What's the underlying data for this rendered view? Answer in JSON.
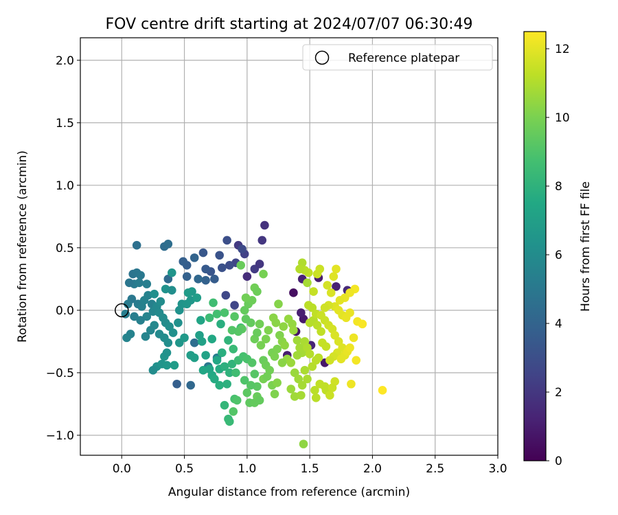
{
  "chart_data": {
    "type": "scatter",
    "title": "FOV centre drift starting at 2024/07/07 06:30:49",
    "xlabel": "Angular distance from reference (arcmin)",
    "ylabel": "Rotation from reference (arcmin)",
    "xlim": [
      -0.33,
      3.0
    ],
    "ylim": [
      -1.16,
      2.18
    ],
    "xticks": [
      "0.0",
      "0.5",
      "1.0",
      "1.5",
      "2.0",
      "2.5",
      "3.0"
    ],
    "xtick_values": [
      0.0,
      0.5,
      1.0,
      1.5,
      2.0,
      2.5,
      3.0
    ],
    "yticks": [
      "−1.0",
      "−0.5",
      "0.0",
      "0.5",
      "1.0",
      "1.5",
      "2.0"
    ],
    "ytick_values": [
      -1.0,
      -0.5,
      0.0,
      0.5,
      1.0,
      1.5,
      2.0
    ],
    "grid": true,
    "legend": {
      "label": "Reference platepar",
      "position": "top-right"
    },
    "reference_point": {
      "x": 0.0,
      "y": 0.0
    },
    "colorbar": {
      "label": "Hours from first FF file",
      "colormap": "viridis",
      "range": [
        0,
        12.5
      ],
      "ticks": [
        "0",
        "2",
        "4",
        "6",
        "8",
        "10",
        "12"
      ],
      "tick_values": [
        0,
        2,
        4,
        6,
        8,
        10,
        12
      ]
    },
    "colors": {
      "grid": "#b0b0b0",
      "reference_marker": "#000000"
    },
    "points": [
      [
        1.37,
        0.14,
        0.5
      ],
      [
        1.39,
        -0.17,
        0.7
      ],
      [
        1.45,
        -0.07,
        0.9
      ],
      [
        1.32,
        -0.36,
        1.0
      ],
      [
        1.62,
        -0.42,
        0.8
      ],
      [
        1.57,
        0.26,
        1.0
      ],
      [
        1.44,
        0.25,
        1.2
      ],
      [
        1.43,
        -0.02,
        1.1
      ],
      [
        1.51,
        -0.28,
        1.3
      ],
      [
        1.71,
        0.19,
        1.2
      ],
      [
        1.8,
        0.16,
        1.5
      ],
      [
        1.0,
        0.27,
        1.6
      ],
      [
        1.14,
        0.68,
        1.8
      ],
      [
        1.12,
        0.56,
        2.0
      ],
      [
        0.93,
        0.52,
        2.1
      ],
      [
        1.06,
        0.33,
        2.2
      ],
      [
        0.98,
        0.45,
        2.4
      ],
      [
        1.1,
        0.37,
        2.0
      ],
      [
        0.91,
        0.38,
        2.6
      ],
      [
        0.96,
        0.49,
        2.8
      ],
      [
        0.84,
        0.56,
        3.0
      ],
      [
        0.78,
        0.44,
        3.2
      ],
      [
        0.86,
        0.36,
        2.9
      ],
      [
        0.71,
        0.31,
        3.3
      ],
      [
        0.67,
        0.33,
        3.5
      ],
      [
        0.74,
        0.25,
        3.6
      ],
      [
        0.9,
        0.04,
        2.6
      ],
      [
        0.83,
        0.12,
        2.7
      ],
      [
        0.8,
        0.34,
        3.1
      ],
      [
        0.65,
        0.46,
        3.4
      ],
      [
        0.52,
        0.36,
        3.7
      ],
      [
        0.49,
        0.39,
        3.8
      ],
      [
        0.58,
        0.42,
        4.0
      ],
      [
        0.52,
        0.27,
        3.9
      ],
      [
        0.67,
        0.24,
        3.9
      ],
      [
        0.61,
        0.25,
        4.2
      ],
      [
        0.34,
        0.51,
        4.4
      ],
      [
        0.37,
        0.53,
        4.5
      ],
      [
        0.12,
        0.52,
        4.6
      ],
      [
        0.37,
        0.25,
        4.3
      ],
      [
        0.44,
        -0.59,
        3.8
      ],
      [
        0.55,
        -0.6,
        4.2
      ],
      [
        0.58,
        -0.26,
        4.5
      ],
      [
        0.69,
        -0.45,
        5.0
      ],
      [
        0.76,
        -0.38,
        5.3
      ],
      [
        0.09,
        0.29,
        4.8
      ],
      [
        0.12,
        0.3,
        4.9
      ],
      [
        0.15,
        0.28,
        5.0
      ],
      [
        0.1,
        0.21,
        5.1
      ],
      [
        0.14,
        0.22,
        5.2
      ],
      [
        0.2,
        0.21,
        5.3
      ],
      [
        0.06,
        0.22,
        4.9
      ],
      [
        0.08,
        0.09,
        5.0
      ],
      [
        0.13,
        0.05,
        5.2
      ],
      [
        0.16,
        0.03,
        5.4
      ],
      [
        0.18,
        0.08,
        5.5
      ],
      [
        0.21,
        0.12,
        5.5
      ],
      [
        0.24,
        0.05,
        5.4
      ],
      [
        0.2,
        -0.05,
        5.6
      ],
      [
        0.25,
        -0.01,
        5.7
      ],
      [
        0.28,
        0.03,
        5.8
      ],
      [
        0.3,
        -0.02,
        5.9
      ],
      [
        0.33,
        -0.06,
        6.0
      ],
      [
        0.35,
        -0.1,
        6.0
      ],
      [
        0.38,
        -0.13,
        6.1
      ],
      [
        0.26,
        -0.12,
        5.8
      ],
      [
        0.23,
        -0.16,
        5.7
      ],
      [
        0.19,
        -0.21,
        5.6
      ],
      [
        0.07,
        -0.19,
        5.5
      ],
      [
        0.04,
        -0.22,
        5.6
      ],
      [
        0.1,
        -0.05,
        5.3
      ],
      [
        0.15,
        -0.08,
        5.4
      ],
      [
        0.05,
        0.05,
        5.2
      ],
      [
        0.03,
        -0.03,
        5.3
      ],
      [
        0.3,
        -0.19,
        5.9
      ],
      [
        0.34,
        -0.22,
        6.0
      ],
      [
        0.37,
        -0.26,
        6.1
      ],
      [
        0.41,
        -0.18,
        6.2
      ],
      [
        0.45,
        -0.1,
        6.2
      ],
      [
        0.46,
        0.0,
        6.3
      ],
      [
        0.48,
        0.05,
        6.4
      ],
      [
        0.52,
        0.05,
        6.5
      ],
      [
        0.55,
        0.08,
        6.6
      ],
      [
        0.56,
        0.15,
        6.7
      ],
      [
        0.53,
        0.14,
        6.8
      ],
      [
        0.6,
        0.1,
        6.9
      ],
      [
        0.35,
        0.17,
        6.3
      ],
      [
        0.4,
        0.16,
        6.1
      ],
      [
        0.4,
        0.3,
        6.4
      ],
      [
        0.26,
        0.13,
        6.2
      ],
      [
        0.31,
        0.07,
        6.0
      ],
      [
        0.34,
        -0.37,
        6.4
      ],
      [
        0.36,
        -0.34,
        6.3
      ],
      [
        0.28,
        -0.45,
        6.2
      ],
      [
        0.25,
        -0.48,
        6.0
      ],
      [
        0.32,
        -0.43,
        6.4
      ],
      [
        0.36,
        -0.44,
        6.6
      ],
      [
        0.42,
        -0.44,
        6.8
      ],
      [
        0.46,
        -0.26,
        6.5
      ],
      [
        0.5,
        -0.22,
        6.7
      ],
      [
        0.55,
        -0.36,
        6.9
      ],
      [
        0.58,
        -0.38,
        7.0
      ],
      [
        0.62,
        -0.2,
        7.0
      ],
      [
        0.64,
        -0.25,
        7.1
      ],
      [
        0.67,
        -0.36,
        7.2
      ],
      [
        0.7,
        -0.47,
        7.3
      ],
      [
        0.72,
        -0.52,
        7.5
      ],
      [
        0.76,
        -0.4,
        7.4
      ],
      [
        0.78,
        -0.47,
        7.6
      ],
      [
        0.8,
        -0.34,
        7.8
      ],
      [
        0.82,
        -0.45,
        7.9
      ],
      [
        0.86,
        -0.5,
        8.0
      ],
      [
        0.88,
        -0.43,
        8.1
      ],
      [
        0.84,
        -0.59,
        7.9
      ],
      [
        0.82,
        -0.76,
        8.2
      ],
      [
        0.85,
        -0.87,
        8.3
      ],
      [
        0.86,
        -0.89,
        8.4
      ],
      [
        0.78,
        -0.6,
        7.8
      ],
      [
        0.74,
        -0.55,
        7.6
      ],
      [
        0.65,
        -0.48,
        7.4
      ],
      [
        0.63,
        -0.08,
        7.3
      ],
      [
        0.72,
        -0.23,
        7.5
      ],
      [
        0.79,
        -0.11,
        7.8
      ],
      [
        0.85,
        -0.24,
        8.1
      ],
      [
        0.89,
        -0.31,
        8.4
      ],
      [
        0.95,
        -0.14,
        8.7
      ],
      [
        0.93,
        -0.4,
        8.5
      ],
      [
        0.97,
        -0.37,
        8.8
      ],
      [
        0.91,
        -0.5,
        8.6
      ],
      [
        1.0,
        -0.39,
        8.9
      ],
      [
        0.98,
        -0.56,
        9.0
      ],
      [
        1.04,
        -0.42,
        9.1
      ],
      [
        1.06,
        -0.51,
        9.2
      ],
      [
        1.08,
        -0.61,
        9.3
      ],
      [
        1.03,
        -0.6,
        9.2
      ],
      [
        0.9,
        -0.71,
        8.8
      ],
      [
        0.92,
        -0.72,
        9.0
      ],
      [
        0.89,
        -0.81,
        9.1
      ],
      [
        1.0,
        -0.66,
        9.3
      ],
      [
        1.02,
        -0.74,
        9.4
      ],
      [
        1.06,
        -0.74,
        9.5
      ],
      [
        1.08,
        -0.69,
        9.6
      ],
      [
        1.1,
        -0.72,
        9.5
      ],
      [
        1.13,
        -0.4,
        9.6
      ],
      [
        1.15,
        -0.44,
        9.7
      ],
      [
        1.18,
        -0.48,
        9.8
      ],
      [
        1.2,
        -0.34,
        9.9
      ],
      [
        1.22,
        -0.37,
        10.0
      ],
      [
        1.24,
        -0.31,
        10.0
      ],
      [
        1.13,
        -0.55,
        9.9
      ],
      [
        1.16,
        -0.53,
        9.8
      ],
      [
        1.2,
        -0.6,
        10.0
      ],
      [
        1.22,
        -0.67,
        10.1
      ],
      [
        1.24,
        -0.58,
        10.2
      ],
      [
        1.26,
        -0.2,
        10.1
      ],
      [
        1.28,
        -0.25,
        10.3
      ],
      [
        1.3,
        -0.28,
        10.4
      ],
      [
        1.32,
        -0.39,
        10.5
      ],
      [
        1.35,
        -0.42,
        10.6
      ],
      [
        1.28,
        -0.42,
        10.3
      ],
      [
        1.06,
        -0.23,
        9.7
      ],
      [
        1.08,
        -0.18,
        9.6
      ],
      [
        1.1,
        -0.11,
        9.8
      ],
      [
        1.11,
        -0.28,
        9.9
      ],
      [
        1.15,
        -0.23,
        10.0
      ],
      [
        1.17,
        -0.16,
        10.1
      ],
      [
        1.03,
        -0.1,
        9.5
      ],
      [
        0.99,
        -0.07,
        9.4
      ],
      [
        0.96,
        -0.15,
        9.3
      ],
      [
        0.93,
        -0.17,
        9.2
      ],
      [
        0.9,
        -0.05,
        9.2
      ],
      [
        0.88,
        -0.16,
        9.1
      ],
      [
        0.98,
        0.0,
        9.5
      ],
      [
        1.01,
        0.05,
        9.6
      ],
      [
        1.04,
        0.08,
        9.7
      ],
      [
        0.99,
        0.1,
        9.8
      ],
      [
        1.06,
        0.18,
        9.8
      ],
      [
        1.08,
        0.15,
        9.7
      ],
      [
        1.13,
        0.29,
        9.9
      ],
      [
        0.95,
        0.36,
        9.6
      ],
      [
        0.82,
        -0.02,
        8.9
      ],
      [
        0.76,
        -0.03,
        8.7
      ],
      [
        0.73,
        0.06,
        8.6
      ],
      [
        0.7,
        -0.06,
        8.5
      ],
      [
        1.25,
        0.05,
        10.2
      ],
      [
        1.21,
        -0.06,
        10.3
      ],
      [
        1.23,
        -0.1,
        10.3
      ],
      [
        1.29,
        -0.13,
        10.4
      ],
      [
        1.33,
        -0.07,
        10.5
      ],
      [
        1.36,
        -0.11,
        10.5
      ],
      [
        1.37,
        -0.16,
        10.6
      ],
      [
        1.4,
        -0.24,
        10.7
      ],
      [
        1.42,
        -0.3,
        10.8
      ],
      [
        1.44,
        -0.34,
        10.8
      ],
      [
        1.4,
        -0.36,
        10.7
      ],
      [
        1.46,
        -0.25,
        10.9
      ],
      [
        1.48,
        -0.3,
        11.0
      ],
      [
        1.5,
        -0.35,
        11.1
      ],
      [
        1.38,
        -0.5,
        10.6
      ],
      [
        1.41,
        -0.55,
        10.7
      ],
      [
        1.44,
        -0.6,
        10.8
      ],
      [
        1.48,
        -0.55,
        10.9
      ],
      [
        1.46,
        -0.48,
        10.9
      ],
      [
        1.35,
        -0.63,
        10.6
      ],
      [
        1.38,
        -0.69,
        10.7
      ],
      [
        1.43,
        -0.68,
        10.8
      ],
      [
        1.54,
        -0.64,
        11.2
      ],
      [
        1.55,
        -0.7,
        11.2
      ],
      [
        1.58,
        -0.59,
        11.3
      ],
      [
        1.62,
        -0.61,
        11.3
      ],
      [
        1.63,
        -0.64,
        11.3
      ],
      [
        1.66,
        -0.68,
        11.5
      ],
      [
        1.7,
        -0.57,
        11.6
      ],
      [
        1.68,
        -0.62,
        11.5
      ],
      [
        1.52,
        -0.45,
        11.1
      ],
      [
        1.55,
        -0.4,
        11.2
      ],
      [
        1.57,
        -0.38,
        11.2
      ],
      [
        1.6,
        -0.26,
        11.4
      ],
      [
        1.63,
        -0.29,
        11.4
      ],
      [
        1.5,
        -0.1,
        11.1
      ],
      [
        1.53,
        -0.08,
        11.1
      ],
      [
        1.56,
        -0.12,
        11.2
      ],
      [
        1.59,
        -0.17,
        11.3
      ],
      [
        1.49,
        0.04,
        11.2
      ],
      [
        1.52,
        0.02,
        11.2
      ],
      [
        1.55,
        -0.03,
        11.3
      ],
      [
        1.62,
        -0.08,
        11.5
      ],
      [
        1.65,
        -0.12,
        11.6
      ],
      [
        1.68,
        -0.15,
        11.7
      ],
      [
        1.7,
        -0.2,
        11.8
      ],
      [
        1.73,
        -0.25,
        11.8
      ],
      [
        1.76,
        -0.3,
        11.9
      ],
      [
        1.72,
        -0.34,
        11.8
      ],
      [
        1.69,
        -0.37,
        11.7
      ],
      [
        1.66,
        -0.4,
        11.6
      ],
      [
        1.75,
        -0.39,
        12.0
      ],
      [
        1.78,
        -0.36,
        12.0
      ],
      [
        1.8,
        -0.33,
        12.1
      ],
      [
        1.82,
        -0.3,
        12.2
      ],
      [
        1.85,
        -0.22,
        12.2
      ],
      [
        1.87,
        -0.4,
        12.3
      ],
      [
        1.83,
        -0.59,
        12.2
      ],
      [
        2.08,
        -0.64,
        12.5
      ],
      [
        1.88,
        -0.09,
        12.3
      ],
      [
        1.92,
        -0.11,
        12.4
      ],
      [
        1.86,
        0.17,
        12.3
      ],
      [
        1.82,
        0.14,
        12.2
      ],
      [
        1.78,
        0.1,
        12.1
      ],
      [
        1.74,
        0.08,
        12.0
      ],
      [
        1.71,
        0.33,
        12.0
      ],
      [
        1.69,
        0.27,
        11.9
      ],
      [
        1.67,
        0.14,
        11.8
      ],
      [
        1.64,
        0.2,
        11.7
      ],
      [
        1.58,
        0.33,
        11.5
      ],
      [
        1.56,
        0.29,
        11.5
      ],
      [
        1.53,
        0.15,
        11.4
      ],
      [
        1.49,
        0.3,
        11.3
      ],
      [
        1.46,
        0.32,
        11.2
      ],
      [
        1.44,
        0.38,
        11.0
      ],
      [
        1.42,
        0.33,
        11.1
      ],
      [
        1.7,
        0.03,
        11.9
      ],
      [
        1.73,
        0.0,
        12.0
      ],
      [
        1.76,
        -0.04,
        12.0
      ],
      [
        1.79,
        -0.06,
        12.1
      ],
      [
        1.82,
        -0.02,
        12.1
      ],
      [
        1.65,
        0.04,
        11.7
      ],
      [
        1.62,
        0.02,
        11.6
      ],
      [
        1.59,
        -0.04,
        11.5
      ],
      [
        1.45,
        -1.07,
        10.4
      ],
      [
        1.48,
        0.22,
        10.8
      ]
    ]
  }
}
